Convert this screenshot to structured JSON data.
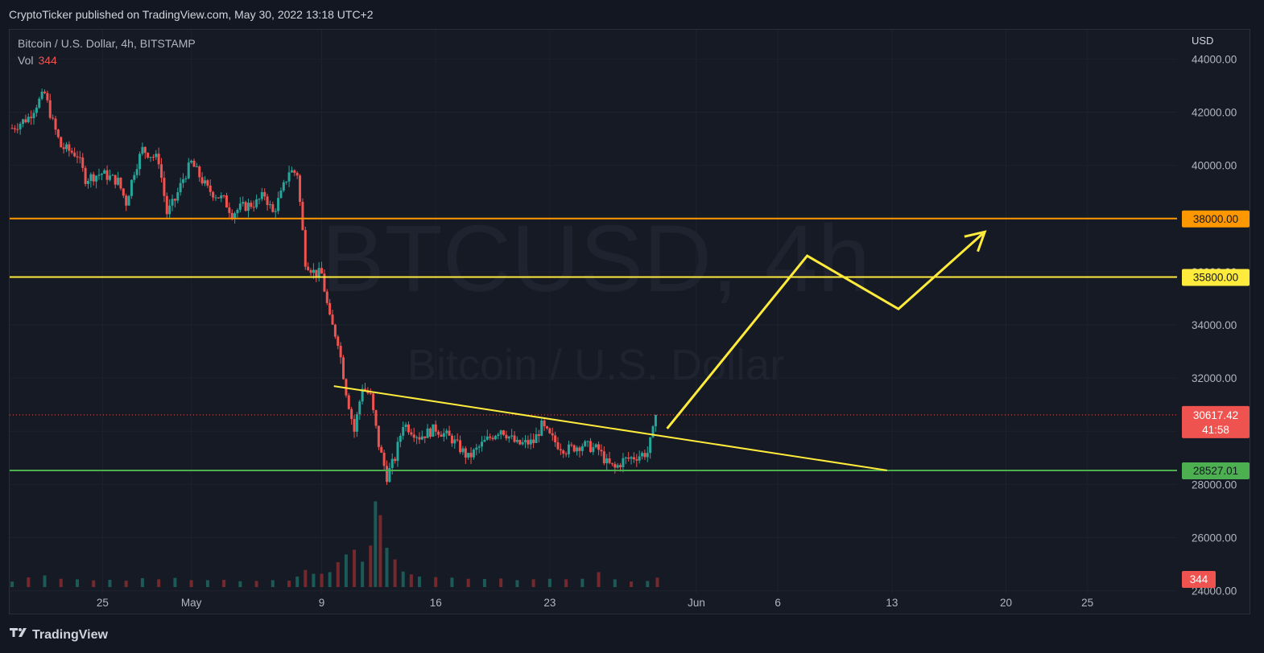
{
  "header": {
    "published": "CryptoTicker published on TradingView.com, May 30, 2022 13:18 UTC+2"
  },
  "legend": {
    "symbol": "Bitcoin / U.S. Dollar, 4h, BITSTAMP",
    "vol_label": "Vol",
    "vol_value": "344"
  },
  "watermark": {
    "ticker": "BTCUSD, 4h",
    "name": "Bitcoin / U.S. Dollar"
  },
  "footer": {
    "brand": "TradingView",
    "brand_icon": "tradingview-logo-icon"
  },
  "chart_data": {
    "type": "candlestick",
    "currency": "USD",
    "y_axis": {
      "ticks": [
        44000,
        42000,
        40000,
        38000,
        36000,
        34000,
        32000,
        30000,
        28000,
        26000,
        24000
      ],
      "tick_labels": [
        "44000.00",
        "42000.00",
        "40000.00",
        "38000.00",
        "36000.00",
        "34000.00",
        "32000.00",
        "30000.00",
        "28000.00",
        "26000.00",
        "24000.00"
      ],
      "range": [
        23900,
        45100
      ]
    },
    "x_axis": {
      "ticks": [
        "25",
        "May",
        "9",
        "16",
        "23",
        "Jun",
        "6",
        "13",
        "20",
        "25"
      ],
      "tick_days": [
        -5.45,
        0,
        8,
        15,
        22,
        31,
        36,
        43,
        50,
        55
      ],
      "range_days": [
        -11.15,
        60.5
      ]
    },
    "horizontal_lines": [
      {
        "price": 38000,
        "label": "38000.00",
        "color": "#ff9800"
      },
      {
        "price": 35800,
        "label": "35800.00",
        "color": "#ffeb3b"
      },
      {
        "price": 28527.01,
        "label": "28527.01",
        "color": "#4caf50"
      }
    ],
    "current_price": {
      "price": 30617.42,
      "label": "30617.42",
      "countdown": "41:58",
      "color": "#ef5350"
    },
    "volume_badge": {
      "label": "344",
      "color": "#ef5350"
    },
    "trendline": {
      "from": {
        "day": 8.75,
        "price": 31700
      },
      "to": {
        "day": 42.7,
        "price": 28530
      },
      "color": "#ffeb3b"
    },
    "projection_path": [
      {
        "day": 29.2,
        "price": 30100
      },
      {
        "day": 37.8,
        "price": 36600
      },
      {
        "day": 43.4,
        "price": 34600
      },
      {
        "day": 48.7,
        "price": 37500
      }
    ],
    "price_path": [
      [
        -11,
        41400
      ],
      [
        -10,
        41800
      ],
      [
        -9.5,
        42300
      ],
      [
        -9,
        42700
      ],
      [
        -8.5,
        41600
      ],
      [
        -8,
        40700
      ],
      [
        -7,
        40400
      ],
      [
        -6.5,
        39500
      ],
      [
        -5.5,
        39700
      ],
      [
        -4.5,
        39400
      ],
      [
        -4,
        38600
      ],
      [
        -3.5,
        39800
      ],
      [
        -3,
        40600
      ],
      [
        -2,
        40200
      ],
      [
        -1.5,
        38200
      ],
      [
        -1,
        38700
      ],
      [
        -0.5,
        39500
      ],
      [
        0,
        40100
      ],
      [
        1,
        39100
      ],
      [
        2,
        38700
      ],
      [
        2.5,
        38200
      ],
      [
        3,
        38400
      ],
      [
        4,
        38600
      ],
      [
        4.5,
        38900
      ],
      [
        5,
        38200
      ],
      [
        5.5,
        38900
      ],
      [
        6,
        39800
      ],
      [
        6.5,
        39700
      ],
      [
        7,
        36400
      ],
      [
        7.5,
        36000
      ],
      [
        8,
        35900
      ],
      [
        8.5,
        34200
      ],
      [
        9,
        33400
      ],
      [
        9.5,
        31500
      ],
      [
        10,
        30000
      ],
      [
        10.5,
        31700
      ],
      [
        11,
        31300
      ],
      [
        11.5,
        29500
      ],
      [
        12,
        28300
      ],
      [
        12.5,
        29000
      ],
      [
        13,
        30300
      ],
      [
        14,
        29800
      ],
      [
        15,
        30100
      ],
      [
        16,
        29700
      ],
      [
        17,
        29000
      ],
      [
        18,
        29600
      ],
      [
        19,
        30100
      ],
      [
        20,
        29500
      ],
      [
        21,
        29600
      ],
      [
        21.5,
        30200
      ],
      [
        22,
        29800
      ],
      [
        22.5,
        29500
      ],
      [
        23,
        29300
      ],
      [
        24,
        29500
      ],
      [
        25,
        29300
      ],
      [
        25.5,
        28800
      ],
      [
        26,
        28600
      ],
      [
        26.5,
        28900
      ],
      [
        27,
        29000
      ],
      [
        28,
        29200
      ],
      [
        28.6,
        30617.42
      ]
    ],
    "volume": {
      "max": 3200,
      "bars": [
        [
          -11,
          200
        ],
        [
          -10,
          350
        ],
        [
          -9,
          420
        ],
        [
          -8,
          300
        ],
        [
          -7,
          280
        ],
        [
          -6,
          240
        ],
        [
          -5,
          260
        ],
        [
          -4,
          230
        ],
        [
          -3,
          320
        ],
        [
          -2,
          280
        ],
        [
          -1,
          330
        ],
        [
          0,
          250
        ],
        [
          1,
          250
        ],
        [
          2,
          260
        ],
        [
          3,
          210
        ],
        [
          4,
          220
        ],
        [
          5,
          250
        ],
        [
          6,
          230
        ],
        [
          6.5,
          380
        ],
        [
          7,
          620
        ],
        [
          7.5,
          480
        ],
        [
          8,
          480
        ],
        [
          8.5,
          540
        ],
        [
          9,
          900
        ],
        [
          9.5,
          1180
        ],
        [
          10,
          1350
        ],
        [
          10.5,
          920
        ],
        [
          11,
          1500
        ],
        [
          11.3,
          3100
        ],
        [
          11.6,
          2600
        ],
        [
          12,
          1420
        ],
        [
          12.5,
          1000
        ],
        [
          13,
          560
        ],
        [
          13.5,
          460
        ],
        [
          14,
          380
        ],
        [
          15,
          360
        ],
        [
          16,
          340
        ],
        [
          17,
          300
        ],
        [
          18,
          290
        ],
        [
          19,
          310
        ],
        [
          20,
          250
        ],
        [
          21,
          280
        ],
        [
          22,
          300
        ],
        [
          23,
          280
        ],
        [
          24,
          300
        ],
        [
          25,
          540
        ],
        [
          26,
          280
        ],
        [
          27,
          200
        ],
        [
          28,
          220
        ],
        [
          28.6,
          344
        ]
      ]
    }
  }
}
